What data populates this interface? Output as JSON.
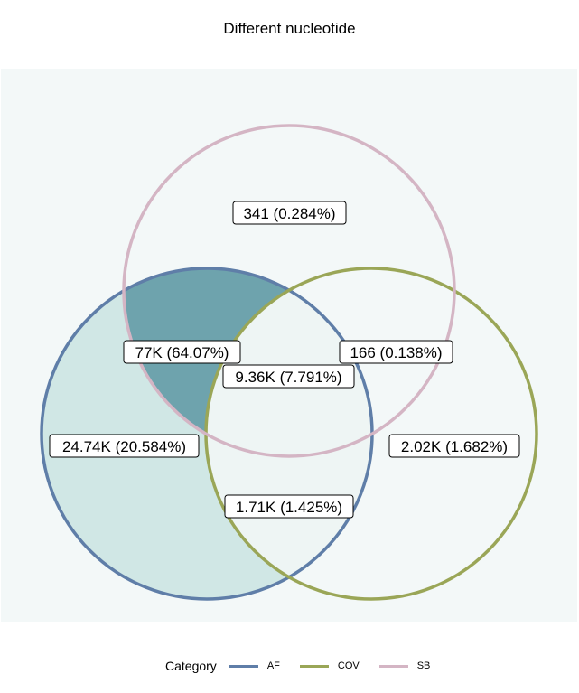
{
  "chart_data": {
    "type": "venn",
    "title": "Different nucleotide",
    "sets": [
      {
        "name": "AF",
        "color": "#5f7ea8"
      },
      {
        "name": "COV",
        "color": "#9aa657"
      },
      {
        "name": "SB",
        "color": "#d4b5c4"
      }
    ],
    "regions": [
      {
        "id": "sb_only",
        "sets": [
          "SB"
        ],
        "label": "341 (0.284%)",
        "count": 341,
        "percent": 0.284
      },
      {
        "id": "af_sb",
        "sets": [
          "AF",
          "SB"
        ],
        "label": "77K (64.07%)",
        "count": 77000,
        "percent": 64.07
      },
      {
        "id": "cov_sb",
        "sets": [
          "COV",
          "SB"
        ],
        "label": "166 (0.138%)",
        "count": 166,
        "percent": 0.138
      },
      {
        "id": "af_cov_sb",
        "sets": [
          "AF",
          "COV",
          "SB"
        ],
        "label": "9.36K (7.791%)",
        "count": 9360,
        "percent": 7.791
      },
      {
        "id": "af_only",
        "sets": [
          "AF"
        ],
        "label": "24.74K (20.584%)",
        "count": 24740,
        "percent": 20.584
      },
      {
        "id": "cov_only",
        "sets": [
          "COV"
        ],
        "label": "2.02K (1.682%)",
        "count": 2020,
        "percent": 1.682
      },
      {
        "id": "af_cov",
        "sets": [
          "AF",
          "COV"
        ],
        "label": "1.71K (1.425%)",
        "count": 1710,
        "percent": 1.425
      }
    ],
    "legend": {
      "title": "Category",
      "position": "bottom"
    },
    "colors": {
      "panel_background": "#f3f8f8",
      "fill_low": "#d0e7e5",
      "fill_high": "#6ea3ad"
    }
  }
}
